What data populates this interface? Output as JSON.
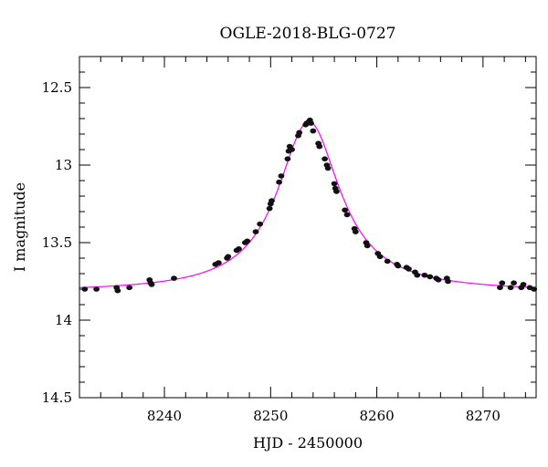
{
  "chart_data": {
    "type": "scatter",
    "title": "OGLE-2018-BLG-0727",
    "xlabel": "HJD - 2450000",
    "ylabel": "I magnitude",
    "xlim": [
      8232,
      8275
    ],
    "ylim": [
      12.3,
      14.5
    ],
    "y_inverted": true,
    "x_ticks": [
      8240,
      8250,
      8260,
      8270
    ],
    "x_tick_labels": [
      "8240",
      "8250",
      "8260",
      "8270"
    ],
    "y_ticks": [
      12.5,
      13,
      13.5,
      14,
      14.5
    ],
    "y_tick_labels": [
      "12.5",
      "13",
      "13.5",
      "14",
      "14.5"
    ],
    "grid": false,
    "model_color": "#ff00ff",
    "point_color": "#111111",
    "model": {
      "t0": 8253.6,
      "baseline": 13.82,
      "peak_mag": 12.72,
      "width": 3.6
    },
    "series": [
      {
        "points": [
          [
            8232.5,
            13.8
          ],
          [
            8233.6,
            13.8
          ],
          [
            8235.5,
            13.79
          ],
          [
            8235.6,
            13.81
          ],
          [
            8236.7,
            13.79
          ],
          [
            8238.6,
            13.74
          ],
          [
            8238.7,
            13.76
          ],
          [
            8238.8,
            13.77
          ],
          [
            8240.9,
            13.73
          ],
          [
            8244.8,
            13.64
          ],
          [
            8245.1,
            13.63
          ],
          [
            8245.9,
            13.6
          ],
          [
            8246.0,
            13.59
          ],
          [
            8246.8,
            13.55
          ],
          [
            8247.0,
            13.54
          ],
          [
            8247.6,
            13.5
          ],
          [
            8247.8,
            13.49
          ],
          [
            8248.6,
            13.43
          ],
          [
            8249.0,
            13.38
          ],
          [
            8249.9,
            13.28
          ],
          [
            8250.0,
            13.25
          ],
          [
            8250.1,
            13.23
          ],
          [
            8250.8,
            13.11
          ],
          [
            8251.0,
            13.07
          ],
          [
            8251.6,
            12.96
          ],
          [
            8251.7,
            12.91
          ],
          [
            8251.8,
            12.88
          ],
          [
            8252.0,
            12.9
          ],
          [
            8252.6,
            12.81
          ],
          [
            8252.7,
            12.79
          ],
          [
            8253.3,
            12.74
          ],
          [
            8253.4,
            12.73
          ],
          [
            8253.6,
            12.72
          ],
          [
            8253.7,
            12.71
          ],
          [
            8253.8,
            12.73
          ],
          [
            8254.0,
            12.78
          ],
          [
            8254.5,
            12.86
          ],
          [
            8254.6,
            12.88
          ],
          [
            8255.1,
            12.96
          ],
          [
            8255.3,
            13.0
          ],
          [
            8255.4,
            13.02
          ],
          [
            8256.0,
            13.12
          ],
          [
            8256.1,
            13.15
          ],
          [
            8256.2,
            13.17
          ],
          [
            8257.0,
            13.29
          ],
          [
            8257.2,
            13.32
          ],
          [
            8257.9,
            13.41
          ],
          [
            8258.0,
            13.43
          ],
          [
            8259.0,
            13.5
          ],
          [
            8259.1,
            13.52
          ],
          [
            8260.1,
            13.57
          ],
          [
            8260.3,
            13.59
          ],
          [
            8261.0,
            13.62
          ],
          [
            8261.9,
            13.64
          ],
          [
            8262.0,
            13.65
          ],
          [
            8262.8,
            13.66
          ],
          [
            8263.0,
            13.67
          ],
          [
            8263.6,
            13.69
          ],
          [
            8263.8,
            13.71
          ],
          [
            8264.5,
            13.71
          ],
          [
            8265.0,
            13.72
          ],
          [
            8265.6,
            13.73
          ],
          [
            8265.8,
            13.74
          ],
          [
            8266.6,
            13.73
          ],
          [
            8266.7,
            13.75
          ],
          [
            8271.6,
            13.79
          ],
          [
            8271.8,
            13.76
          ],
          [
            8272.6,
            13.79
          ],
          [
            8272.9,
            13.76
          ],
          [
            8273.6,
            13.79
          ],
          [
            8273.8,
            13.77
          ],
          [
            8274.4,
            13.79
          ],
          [
            8274.8,
            13.8
          ]
        ]
      }
    ]
  }
}
